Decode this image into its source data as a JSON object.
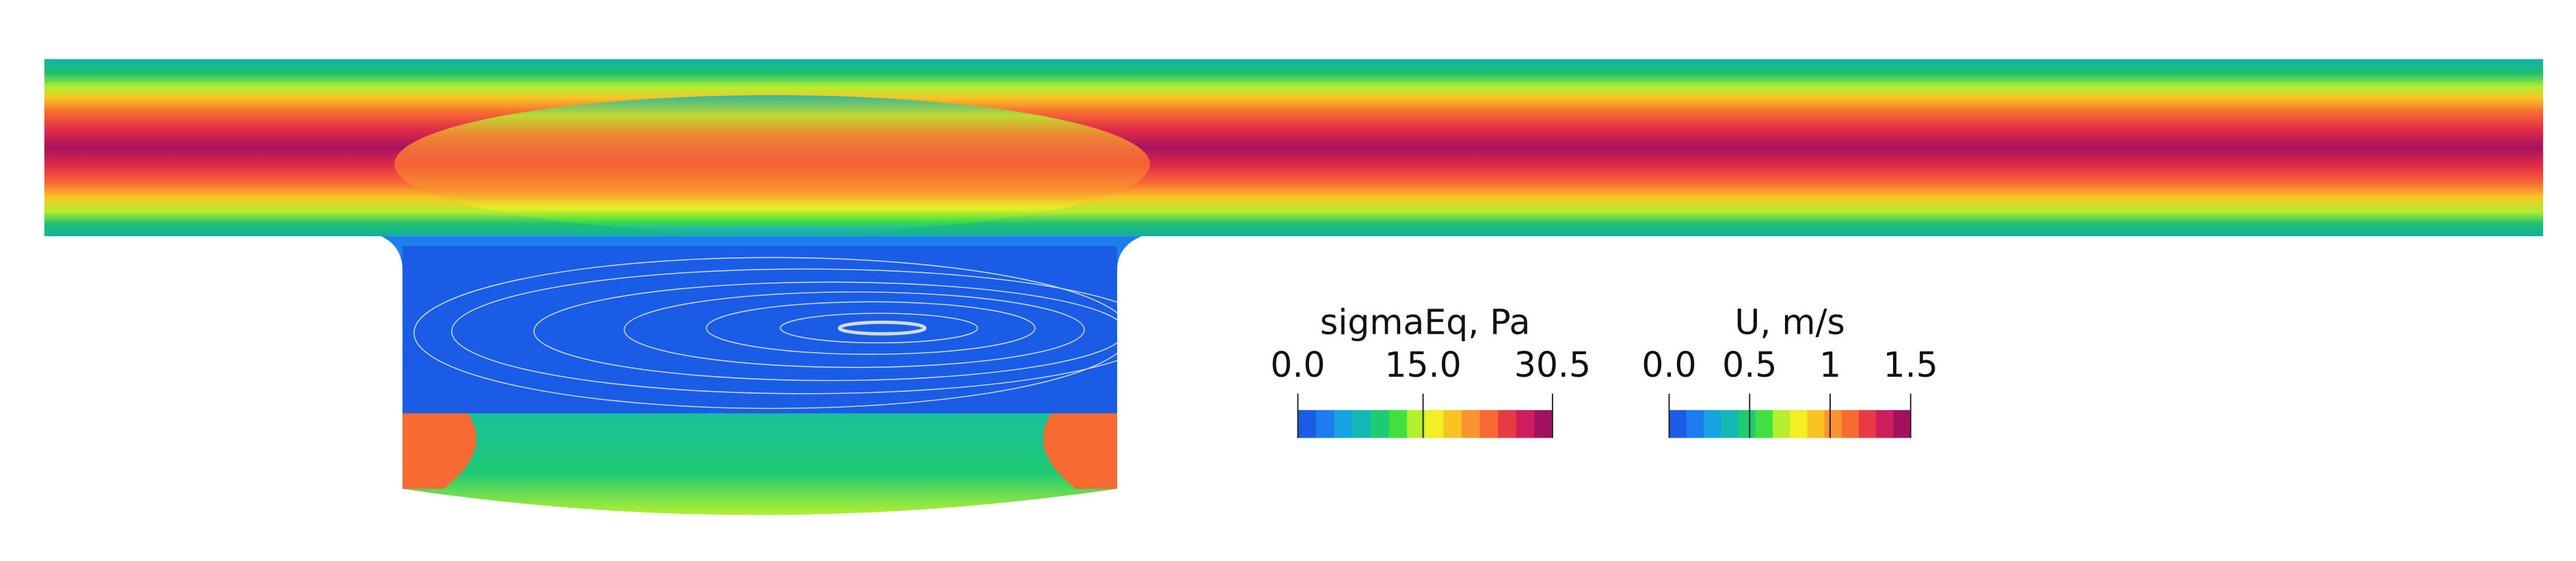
{
  "legends": [
    {
      "title": "sigmaEq, Pa",
      "range": [
        0,
        30.5
      ],
      "ticks": [
        {
          "value": 0,
          "label": "0.0"
        },
        {
          "value": 15,
          "label": "15.0"
        },
        30.5
      ]
    },
    {
      "title": "U, m/s",
      "range": [
        0,
        1.5
      ],
      "ticks": [
        {
          "value": 0,
          "label": "0.0"
        },
        0.5,
        1,
        1.5
      ]
    }
  ],
  "colors": [
    "#1a5ce6",
    "#1d7cf0",
    "#16a3e0",
    "#12b9b4",
    "#1fca74",
    "#3fe040",
    "#b4ef2e",
    "#f2ef22",
    "#f8c424",
    "#f89530",
    "#f76a32",
    "#e83a44",
    "#cc1d5c",
    "#a2115e"
  ]
}
